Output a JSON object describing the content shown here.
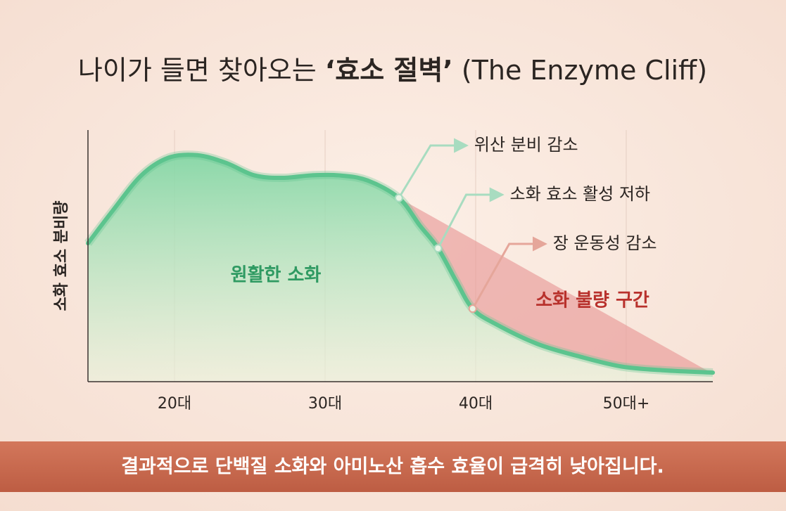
{
  "chart_data": {
    "type": "area",
    "title": {
      "before": "나이가 들면 찾아오는 ",
      "highlight": "‘효소 절벽’",
      "after": " (The Enzyme Cliff)"
    },
    "y_label": "소화 효소 분비량",
    "xlim": [
      14.25,
      55.75
    ],
    "ylim": [
      0,
      100
    ],
    "xticks": [
      {
        "value": 20,
        "label": "20대"
      },
      {
        "value": 30,
        "label": "30대"
      },
      {
        "value": 40,
        "label": "40대"
      },
      {
        "value": 50,
        "label": "50대+"
      }
    ],
    "grid": true,
    "series": [
      {
        "color": "#5cc48e",
        "x": [
          14.25,
          15.9,
          17.8,
          19.6,
          21.5,
          23.4,
          25.3,
          27.2,
          29.1,
          30.9,
          32.8,
          34.9,
          36.3,
          37.5,
          38.7,
          39.8,
          41.3,
          44.1,
          46.9,
          49.7,
          52.5,
          55.75
        ],
        "values": [
          55,
          68,
          82,
          89,
          90,
          87,
          82,
          81,
          82,
          82,
          80,
          73,
          62,
          53,
          40,
          29,
          23,
          15,
          10,
          6,
          4.5,
          3.6
        ]
      },
      {
        "color": "#e89a98",
        "x": [
          34.9,
          55.2
        ],
        "values": [
          73,
          5
        ]
      }
    ],
    "region_labels": [
      "원활한 소화",
      "소화 불량 구간"
    ],
    "annotations": [
      {
        "text": "위산 분비 감소",
        "x": 34.9,
        "y": 73
      },
      {
        "text": "소화 효소 활성 저하",
        "x": 37.5,
        "y": 53
      },
      {
        "text": "장 운동성 감소",
        "x": 39.8,
        "y": 29
      }
    ],
    "footer": "결과적으로 단백질 소화와 아미노산 흡수 효율이 급격히 낮아집니다."
  }
}
